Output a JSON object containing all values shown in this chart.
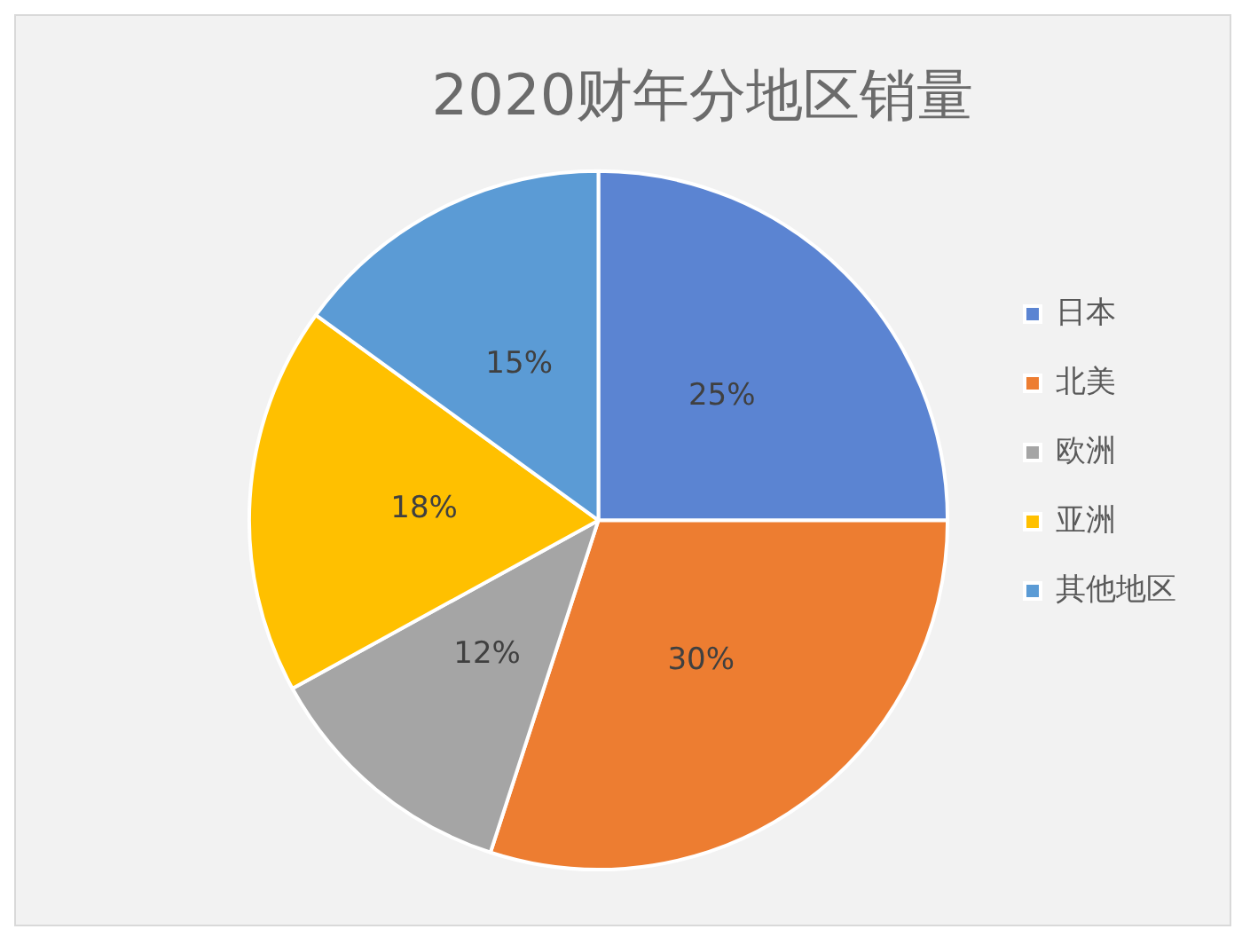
{
  "chart_data": {
    "type": "pie",
    "title": "2020财年分地区销量",
    "categories": [
      "日本",
      "北美",
      "欧洲",
      "亚洲",
      "其他地区"
    ],
    "values": [
      25,
      30,
      12,
      18,
      15
    ],
    "value_labels": [
      "25%",
      "30%",
      "12%",
      "18%",
      "15%"
    ],
    "colors": [
      "#5b84d2",
      "#ed7d31",
      "#a5a5a5",
      "#ffc000",
      "#5b9bd5"
    ],
    "legend": "right"
  }
}
